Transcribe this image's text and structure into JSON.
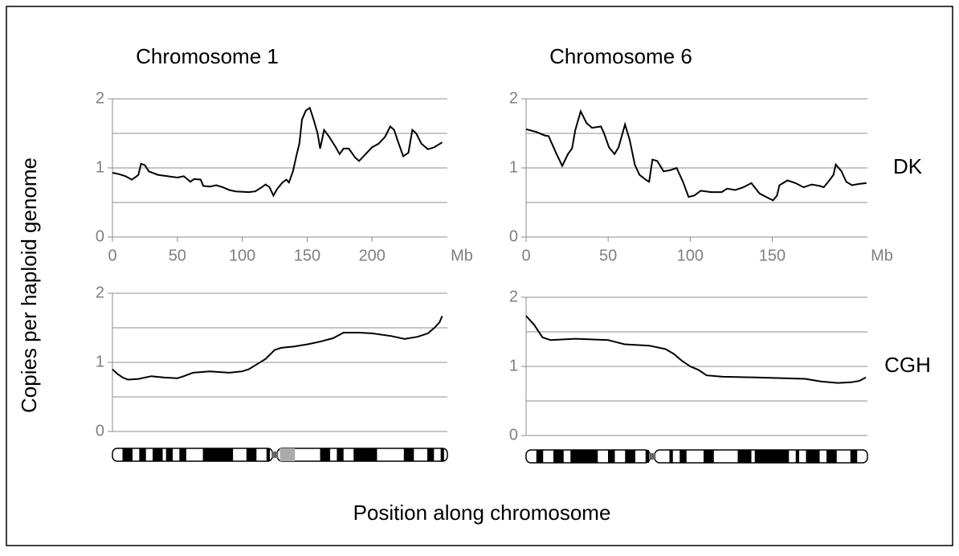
{
  "figure": {
    "ylabel": "Copies per haploid genome",
    "xlabel": "Position along chromosome"
  },
  "chart_data": [
    {
      "type": "line",
      "title": "Chromosome 1",
      "x": [
        0,
        5,
        10,
        15,
        18,
        20,
        22,
        25,
        28,
        35,
        50,
        55,
        60,
        63,
        68,
        70,
        75,
        80,
        85,
        90,
        95,
        105,
        110,
        115,
        118,
        121,
        124,
        127,
        131,
        134,
        136,
        139,
        142,
        144,
        146,
        149,
        152,
        155,
        158,
        160,
        163,
        167,
        172,
        175,
        178,
        182,
        187,
        190,
        195,
        200,
        205,
        210,
        214,
        217,
        220,
        224,
        228,
        231,
        234,
        238,
        243,
        248,
        254
      ],
      "series": [
        {
          "color": "#000000",
          "values": [
            0.93,
            0.91,
            0.88,
            0.83,
            0.87,
            0.9,
            1.06,
            1.04,
            0.95,
            0.9,
            0.86,
            0.88,
            0.8,
            0.84,
            0.83,
            0.74,
            0.73,
            0.75,
            0.72,
            0.68,
            0.66,
            0.65,
            0.66,
            0.72,
            0.76,
            0.72,
            0.6,
            0.7,
            0.79,
            0.83,
            0.79,
            0.95,
            1.2,
            1.35,
            1.7,
            1.83,
            1.87,
            1.7,
            1.5,
            1.28,
            1.55,
            1.45,
            1.3,
            1.2,
            1.28,
            1.28,
            1.15,
            1.1,
            1.2,
            1.3,
            1.35,
            1.45,
            1.6,
            1.55,
            1.38,
            1.17,
            1.22,
            1.55,
            1.5,
            1.35,
            1.27,
            1.3,
            1.37
          ]
        }
      ],
      "xlim": [
        0,
        258
      ],
      "xticks": [
        0,
        50,
        100,
        150,
        200
      ],
      "xlabel": "Mb",
      "ylim": [
        0,
        2
      ],
      "yticks": [
        0,
        1,
        2
      ],
      "ygrid": [
        0.5,
        1,
        1.5,
        2
      ]
    },
    {
      "type": "line",
      "title": "Chromosome 6",
      "annotation": "DK",
      "x": [
        0,
        6.4,
        11.3,
        13.7,
        18.6,
        22,
        25.5,
        28,
        30,
        33.3,
        36.8,
        40.2,
        45.6,
        47.5,
        50.5,
        53.9,
        56.4,
        60.3,
        63.2,
        66.2,
        69.1,
        73.5,
        75,
        77,
        79.9,
        83.8,
        88.2,
        91.7,
        95.6,
        99,
        102.5,
        106.4,
        112.7,
        119.1,
        122.5,
        127.5,
        132.4,
        137.3,
        142.2,
        147.1,
        150.5,
        152.9,
        154.4,
        159.3,
        164.2,
        169.1,
        174,
        178.9,
        181.4,
        184.8,
        187.3,
        188.7,
        192.2,
        195.1,
        198.5,
        203.4,
        207.4
      ],
      "series": [
        {
          "color": "#000000",
          "values": [
            1.56,
            1.52,
            1.47,
            1.46,
            1.2,
            1.03,
            1.2,
            1.28,
            1.55,
            1.82,
            1.65,
            1.58,
            1.6,
            1.5,
            1.3,
            1.2,
            1.3,
            1.63,
            1.4,
            1.05,
            0.9,
            0.82,
            0.8,
            1.12,
            1.1,
            0.95,
            0.97,
            1.0,
            0.8,
            0.58,
            0.6,
            0.67,
            0.65,
            0.65,
            0.7,
            0.68,
            0.72,
            0.78,
            0.63,
            0.57,
            0.53,
            0.6,
            0.75,
            0.82,
            0.78,
            0.72,
            0.76,
            0.74,
            0.72,
            0.82,
            0.9,
            1.05,
            0.95,
            0.8,
            0.75,
            0.77,
            0.78
          ]
        }
      ],
      "xlim": [
        0,
        208
      ],
      "xticks": [
        0,
        50,
        100,
        150
      ],
      "xlabel": "Mb",
      "ylim": [
        0,
        2
      ],
      "yticks": [
        0,
        1,
        2
      ],
      "ygrid": [
        0.5,
        1,
        1.5,
        2
      ]
    },
    {
      "type": "line",
      "x": [
        0,
        4,
        8,
        12,
        20,
        30,
        40,
        50,
        55,
        62,
        75,
        90,
        100,
        105,
        112,
        118,
        125,
        130,
        140,
        150,
        160,
        170,
        178,
        190,
        200,
        215,
        225,
        235,
        243,
        248,
        252,
        254
      ],
      "series": [
        {
          "color": "#000000",
          "values": [
            0.9,
            0.83,
            0.78,
            0.75,
            0.76,
            0.8,
            0.78,
            0.77,
            0.8,
            0.85,
            0.87,
            0.85,
            0.87,
            0.9,
            0.98,
            1.05,
            1.18,
            1.21,
            1.23,
            1.26,
            1.3,
            1.35,
            1.43,
            1.43,
            1.42,
            1.38,
            1.34,
            1.37,
            1.42,
            1.5,
            1.58,
            1.67
          ]
        }
      ],
      "xlim": [
        0,
        258
      ],
      "ylim": [
        0,
        2
      ],
      "yticks": [
        0,
        1,
        2
      ],
      "ygrid": [
        0.5,
        1,
        1.5,
        2
      ]
    },
    {
      "type": "line",
      "annotation": "CGH",
      "x": [
        0,
        5,
        10,
        15,
        30,
        50,
        60,
        75,
        85,
        90,
        95,
        100,
        105,
        110,
        120,
        140,
        170,
        180,
        190,
        198,
        203,
        207
      ],
      "series": [
        {
          "color": "#000000",
          "values": [
            1.73,
            1.6,
            1.42,
            1.38,
            1.4,
            1.38,
            1.32,
            1.3,
            1.25,
            1.18,
            1.08,
            1.0,
            0.95,
            0.87,
            0.85,
            0.84,
            0.82,
            0.78,
            0.76,
            0.77,
            0.79,
            0.84
          ]
        }
      ],
      "xlim": [
        0,
        208
      ],
      "ylim": [
        0,
        2
      ],
      "yticks": [
        0,
        1,
        2
      ],
      "ygrid": [
        0.5,
        1,
        1.5,
        2
      ]
    }
  ]
}
